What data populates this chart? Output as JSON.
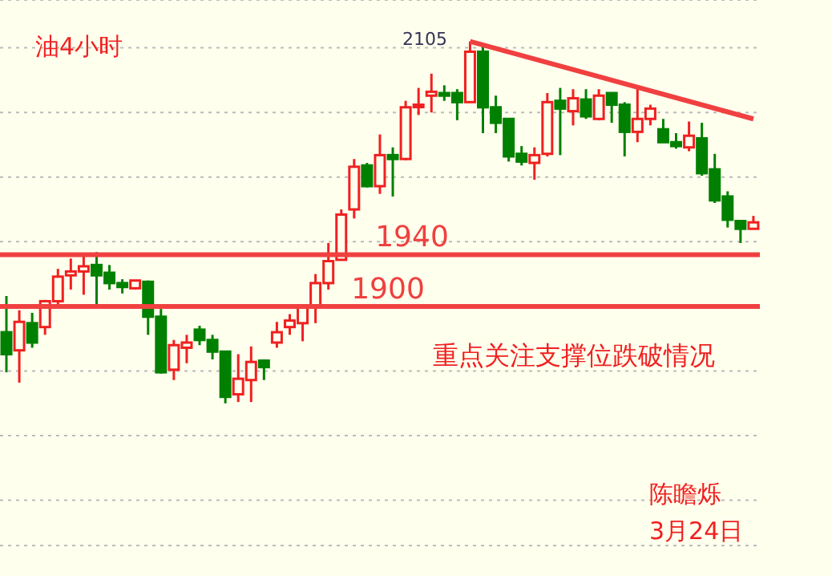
{
  "chart_data": {
    "type": "candlestick",
    "title": "油4小时",
    "categories": [
      null,
      null,
      null,
      null,
      null,
      null,
      null,
      null,
      null,
      null,
      null,
      null,
      null,
      null,
      null,
      null,
      null,
      null,
      null,
      null,
      null,
      null,
      null,
      null,
      null,
      null,
      null,
      null,
      null,
      null,
      null,
      null,
      null,
      null,
      null,
      null,
      null,
      null,
      null,
      null,
      null,
      null,
      null,
      null,
      null,
      null,
      null,
      null,
      null,
      null,
      null,
      null,
      null,
      null,
      null,
      null,
      null,
      null,
      null
    ],
    "ohlc": [
      [
        1880,
        1908,
        1849,
        1863
      ],
      [
        1866,
        1897,
        1841,
        1888
      ],
      [
        1887,
        1895,
        1868,
        1872
      ],
      [
        1884,
        1905,
        1878,
        1904
      ],
      [
        1904,
        1929,
        1901,
        1923
      ],
      [
        1924,
        1937,
        1913,
        1927
      ],
      [
        1927,
        1939,
        1909,
        1931
      ],
      [
        1932,
        1942,
        1899,
        1924
      ],
      [
        1926,
        1932,
        1913,
        1918
      ],
      [
        1918,
        1921,
        1910,
        1915
      ],
      [
        1914,
        1920,
        1913,
        1920
      ],
      [
        1919,
        1920,
        1878,
        1892
      ],
      [
        1892,
        1898,
        1848,
        1849
      ],
      [
        1851,
        1874,
        1843,
        1870
      ],
      [
        1868,
        1878,
        1856,
        1872
      ],
      [
        1882,
        1885,
        1870,
        1874
      ],
      [
        1874,
        1878,
        1859,
        1865
      ],
      [
        1865,
        1865,
        1825,
        1830
      ],
      [
        1832,
        1863,
        1826,
        1844
      ],
      [
        1843,
        1869,
        1826,
        1857
      ],
      [
        1858,
        1859,
        1843,
        1853
      ],
      [
        1872,
        1888,
        1868,
        1880
      ],
      [
        1884,
        1894,
        1878,
        1889
      ],
      [
        1887,
        1900,
        1873,
        1899
      ],
      [
        1899,
        1925,
        1887,
        1918
      ],
      [
        1918,
        1949,
        1913,
        1935
      ],
      [
        1936,
        1975,
        1936,
        1971
      ],
      [
        1975,
        2014,
        1968,
        2008
      ],
      [
        2009,
        2011,
        1992,
        1993
      ],
      [
        1993,
        2033,
        1987,
        2017
      ],
      [
        2017,
        2023,
        1985,
        2014
      ],
      [
        2014,
        2059,
        2013,
        2054
      ],
      [
        2055,
        2069,
        2048,
        2056
      ],
      [
        2063,
        2080,
        2050,
        2066
      ],
      [
        2065,
        2071,
        2059,
        2063
      ],
      [
        2065,
        2068,
        2044,
        2058
      ],
      [
        2058,
        2105,
        2058,
        2097
      ],
      [
        2097,
        2103,
        2034,
        2054
      ],
      [
        2054,
        2063,
        2034,
        2042
      ],
      [
        2045,
        2045,
        2012,
        2016
      ],
      [
        2018,
        2024,
        2009,
        2012
      ],
      [
        2011,
        2023,
        1998,
        2017
      ],
      [
        2018,
        2065,
        2016,
        2058
      ],
      [
        2059,
        2069,
        2017,
        2053
      ],
      [
        2051,
        2068,
        2040,
        2061
      ],
      [
        2060,
        2068,
        2045,
        2047
      ],
      [
        2045,
        2068,
        2044,
        2063
      ],
      [
        2065,
        2065,
        2042,
        2056
      ],
      [
        2056,
        2058,
        2016,
        2035
      ],
      [
        2035,
        2071,
        2027,
        2045
      ],
      [
        2045,
        2056,
        2040,
        2053
      ],
      [
        2037,
        2045,
        2027,
        2027
      ],
      [
        2027,
        2034,
        2022,
        2024
      ],
      [
        2023,
        2043,
        2020,
        2032
      ],
      [
        2030,
        2042,
        2001,
        2003
      ],
      [
        2006,
        2018,
        1980,
        1982
      ],
      [
        1985,
        1989,
        1961,
        1967
      ],
      [
        1966,
        1966,
        1949,
        1960
      ],
      [
        1960,
        1970,
        1960,
        1965
      ]
    ],
    "series": [
      {
        "type": "line",
        "color": "#f04040",
        "values": [
          null,
          null,
          null,
          null,
          null,
          null,
          null,
          null,
          null,
          null,
          null,
          null,
          null,
          null,
          null,
          null,
          null,
          null,
          null,
          null,
          null,
          null,
          null,
          null,
          null,
          null,
          null,
          null,
          null,
          null,
          null,
          null,
          null,
          null,
          null,
          null,
          2105,
          null,
          null,
          null,
          null,
          null,
          null,
          null,
          null,
          null,
          null,
          null,
          null,
          null,
          null,
          null,
          null,
          null,
          null,
          null,
          null,
          null,
          2045
        ]
      }
    ],
    "ylim": [
      1715,
      2137
    ],
    "yticks": [
      {
        "value": 1750,
        "label": null
      },
      {
        "value": 1800,
        "label": null
      },
      {
        "value": 1850,
        "label": null
      },
      {
        "value": 1900,
        "label": null
      },
      {
        "value": 1950,
        "label": null
      },
      {
        "value": 2000,
        "label": null
      },
      {
        "value": 2050,
        "label": null
      },
      {
        "value": 2100,
        "label": null
      }
    ],
    "grid": "y",
    "tick_labels": false,
    "ref_lines": [
      {
        "axis": "y",
        "value": 1940,
        "label": "1940",
        "color": "#f04040"
      },
      {
        "axis": "y",
        "value": 1900,
        "label": "1900",
        "color": "#f04040"
      }
    ],
    "annotations": [
      "2105",
      "重点关注支撑位跌破情况",
      "陈瞻烁",
      "3月24日"
    ]
  }
}
